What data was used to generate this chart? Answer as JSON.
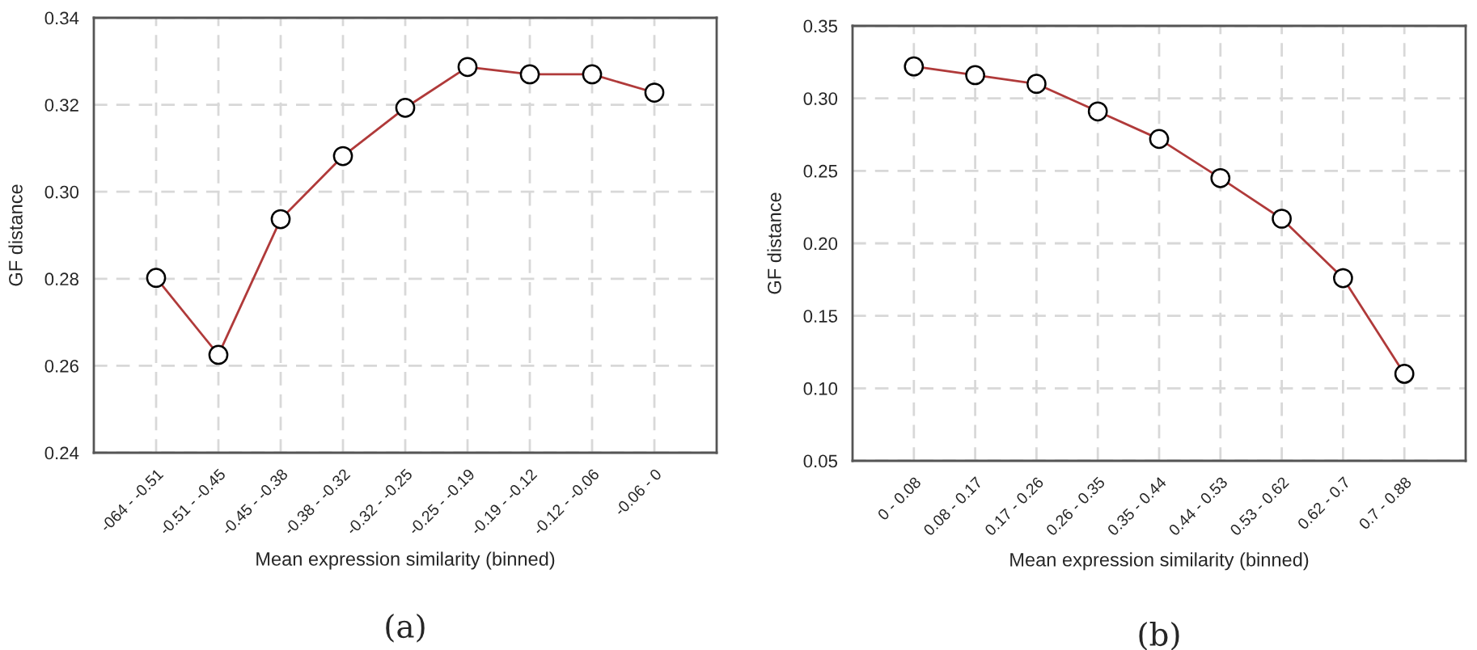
{
  "chart_data": [
    {
      "type": "line",
      "xlabel": "Mean expression similarity (binned)",
      "ylabel": "GF distance",
      "categories": [
        "-064 - -0.51",
        "-0.51 - -0.45",
        "-0.45 - -0.38",
        "-0.38 - -0.32",
        "-0.32 - -0.25",
        "-0.25 - -0.19",
        "-0.19 - -0.12",
        "-0.12 - -0.06",
        "-0.06 - 0"
      ],
      "series": [
        {
          "color": "#b03a3a",
          "values": [
            0.2802,
            0.2625,
            0.2937,
            0.3082,
            0.3193,
            0.3287,
            0.327,
            0.327,
            0.3228
          ]
        }
      ],
      "ylim": [
        0.24,
        0.34
      ],
      "yticks": [
        {
          "value": 0.24,
          "label": "0.24"
        },
        {
          "value": 0.26,
          "label": "0.26"
        },
        {
          "value": 0.28,
          "label": "0.28"
        },
        {
          "value": 0.3,
          "label": "0.30"
        },
        {
          "value": 0.32,
          "label": "0.32"
        },
        {
          "value": 0.34,
          "label": "0.34"
        }
      ],
      "grid": true,
      "marker": "circle",
      "line_style": "solid",
      "annotations": [
        "(a)"
      ]
    },
    {
      "type": "line",
      "xlabel": "Mean expression similarity (binned)",
      "ylabel": "GF distance",
      "categories": [
        "0 - 0.08",
        "0.08 - 0.17",
        "0.17 - 0.26",
        "0.26 - 0.35",
        "0.35 - 0.44",
        "0.44 - 0.53",
        "0.53 - 0.62",
        "0.62 - 0.7",
        "0.7 - 0.88"
      ],
      "series": [
        {
          "color": "#b03a3a",
          "values": [
            0.322,
            0.316,
            0.31,
            0.291,
            0.272,
            0.245,
            0.217,
            0.176,
            0.11
          ]
        }
      ],
      "ylim": [
        0.05,
        0.35
      ],
      "yticks": [
        {
          "value": 0.05,
          "label": "0.05"
        },
        {
          "value": 0.1,
          "label": "0.10"
        },
        {
          "value": 0.15,
          "label": "0.15"
        },
        {
          "value": 0.2,
          "label": "0.20"
        },
        {
          "value": 0.25,
          "label": "0.25"
        },
        {
          "value": 0.3,
          "label": "0.30"
        },
        {
          "value": 0.35,
          "label": "0.35"
        }
      ],
      "grid": true,
      "marker": "circle",
      "line_style": "solid",
      "annotations": [
        "(b)"
      ]
    }
  ]
}
